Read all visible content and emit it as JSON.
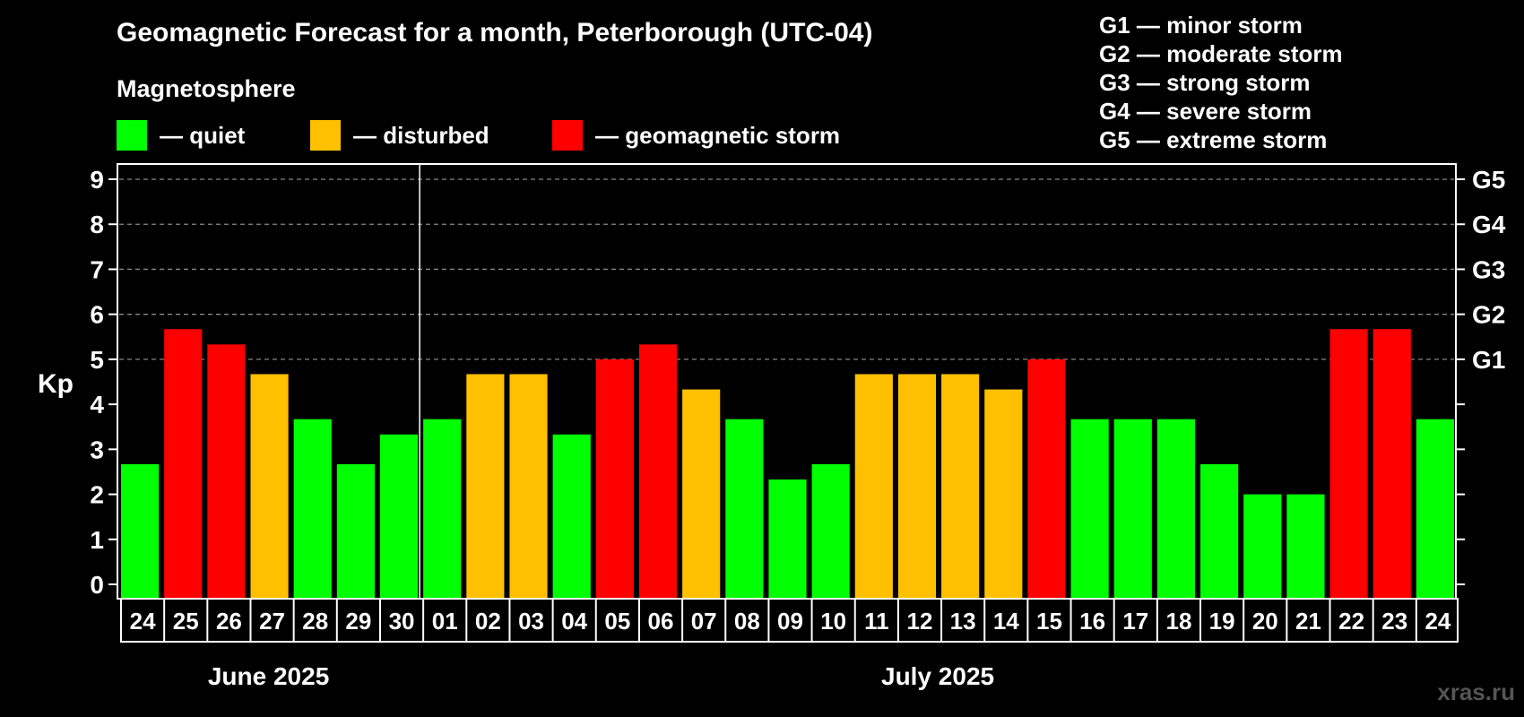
{
  "header": {
    "title": "Geomagnetic Forecast for a month, Peterborough (UTC-04)",
    "subtitle": "Magnetosphere"
  },
  "legend": [
    {
      "label": "— quiet",
      "color": "#00ff00"
    },
    {
      "label": "— disturbed",
      "color": "#ffc000"
    },
    {
      "label": "— geomagnetic storm",
      "color": "#ff0000"
    }
  ],
  "g_scale": [
    "G1 — minor storm",
    "G2 — moderate storm",
    "G3 — strong storm",
    "G4 — severe storm",
    "G5 — extreme storm"
  ],
  "watermark": "xras.ru",
  "chart_data": {
    "type": "bar",
    "title": "Geomagnetic Forecast for a month, Peterborough (UTC-04)",
    "ylabel": "Kp",
    "ylim": [
      0,
      9
    ],
    "yticks": [
      "0",
      "1",
      "2",
      "3",
      "4",
      "5",
      "6",
      "7",
      "8",
      "9"
    ],
    "right_axis": [
      {
        "value": 5,
        "label": "G1"
      },
      {
        "value": 6,
        "label": "G2"
      },
      {
        "value": 7,
        "label": "G3"
      },
      {
        "value": 8,
        "label": "G4"
      },
      {
        "value": 9,
        "label": "G5"
      }
    ],
    "grid": "dashed at 5-9",
    "months": [
      {
        "label": "June 2025",
        "days": 7
      },
      {
        "label": "July 2025",
        "days": 24
      }
    ],
    "categories": [
      "24",
      "25",
      "26",
      "27",
      "28",
      "29",
      "30",
      "01",
      "02",
      "03",
      "04",
      "05",
      "06",
      "07",
      "08",
      "09",
      "10",
      "11",
      "12",
      "13",
      "14",
      "15",
      "16",
      "17",
      "18",
      "19",
      "20",
      "21",
      "22",
      "23",
      "24"
    ],
    "values": [
      2.67,
      5.67,
      5.33,
      4.67,
      3.67,
      2.67,
      3.33,
      3.67,
      4.67,
      4.67,
      3.33,
      5.0,
      5.33,
      4.33,
      3.67,
      2.33,
      2.67,
      4.67,
      4.67,
      4.67,
      4.33,
      5.0,
      3.67,
      3.67,
      3.67,
      2.67,
      2.0,
      2.0,
      5.67,
      5.67,
      3.67
    ],
    "levels": [
      "quiet",
      "storm",
      "storm",
      "disturbed",
      "quiet",
      "quiet",
      "quiet",
      "quiet",
      "disturbed",
      "disturbed",
      "quiet",
      "storm",
      "storm",
      "disturbed",
      "quiet",
      "quiet",
      "quiet",
      "disturbed",
      "disturbed",
      "disturbed",
      "disturbed",
      "storm",
      "quiet",
      "quiet",
      "quiet",
      "quiet",
      "quiet",
      "quiet",
      "storm",
      "storm",
      "quiet"
    ],
    "level_colors": {
      "quiet": "#00ff00",
      "disturbed": "#ffc000",
      "storm": "#ff0000"
    }
  }
}
